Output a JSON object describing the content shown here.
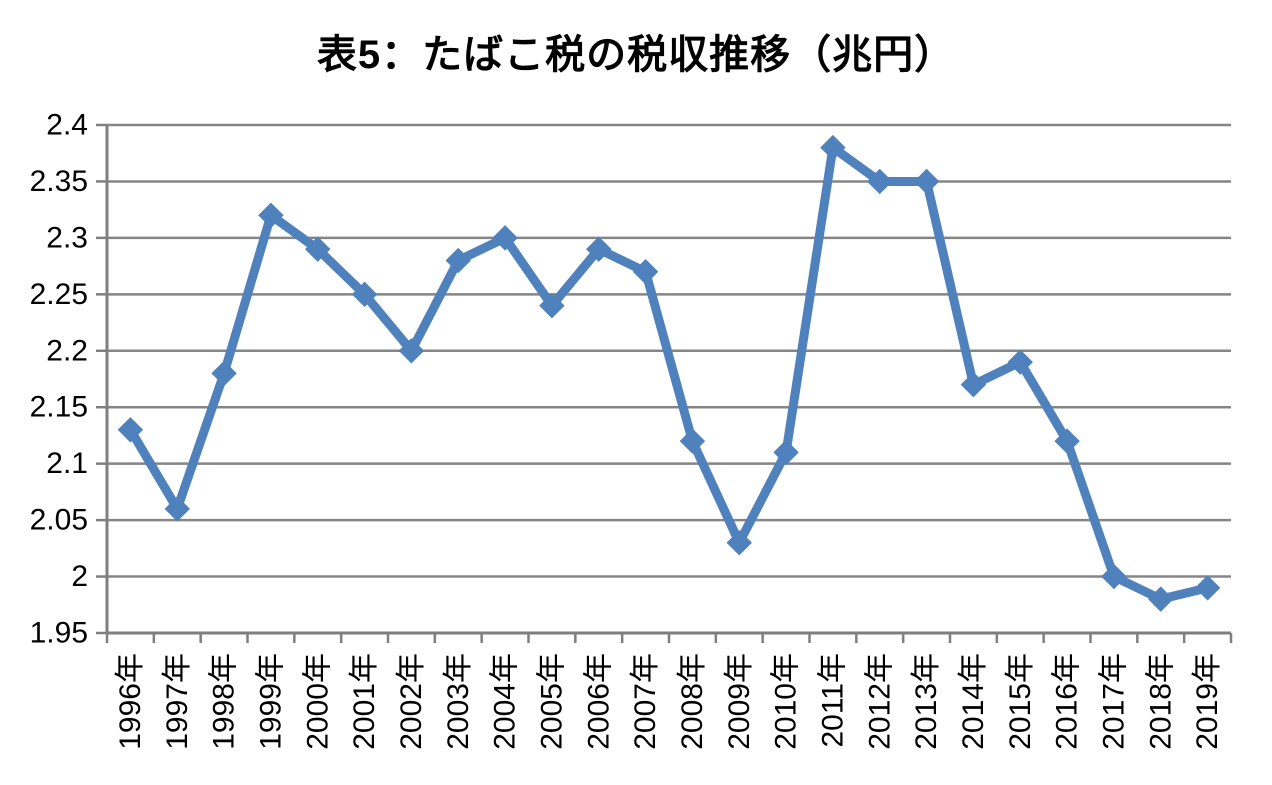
{
  "chart_data": {
    "type": "line",
    "title": "表5：たばこ税の税収推移（兆円）",
    "unit": "兆円",
    "categories": [
      "1996年",
      "1997年",
      "1998年",
      "1999年",
      "2000年",
      "2001年",
      "2002年",
      "2003年",
      "2004年",
      "2005年",
      "2006年",
      "2007年",
      "2008年",
      "2009年",
      "2010年",
      "2011年",
      "2012年",
      "2013年",
      "2014年",
      "2015年",
      "2016年",
      "2017年",
      "2018年",
      "2019年"
    ],
    "values": [
      2.13,
      2.06,
      2.18,
      2.32,
      2.29,
      2.25,
      2.2,
      2.28,
      2.3,
      2.24,
      2.29,
      2.27,
      2.12,
      2.03,
      2.11,
      2.38,
      2.35,
      2.35,
      2.17,
      2.19,
      2.12,
      2.0,
      1.98,
      1.99
    ],
    "ylim": [
      1.95,
      2.4
    ],
    "y_ticks": [
      {
        "value": 2.4,
        "label": "2.4"
      },
      {
        "value": 2.35,
        "label": "2.35"
      },
      {
        "value": 2.3,
        "label": "2.3"
      },
      {
        "value": 2.25,
        "label": "2.25"
      },
      {
        "value": 2.2,
        "label": "2.2"
      },
      {
        "value": 2.15,
        "label": "2.15"
      },
      {
        "value": 2.1,
        "label": "2.1"
      },
      {
        "value": 2.05,
        "label": "2.05"
      },
      {
        "value": 2.0,
        "label": "2"
      },
      {
        "value": 1.95,
        "label": "1.95"
      }
    ],
    "grid": true,
    "legend": "none",
    "marker": "diamond",
    "colors": {
      "series": "#4F81BD",
      "grid": "#858585",
      "axis": "#7F7F7F",
      "text": "#000000"
    }
  }
}
